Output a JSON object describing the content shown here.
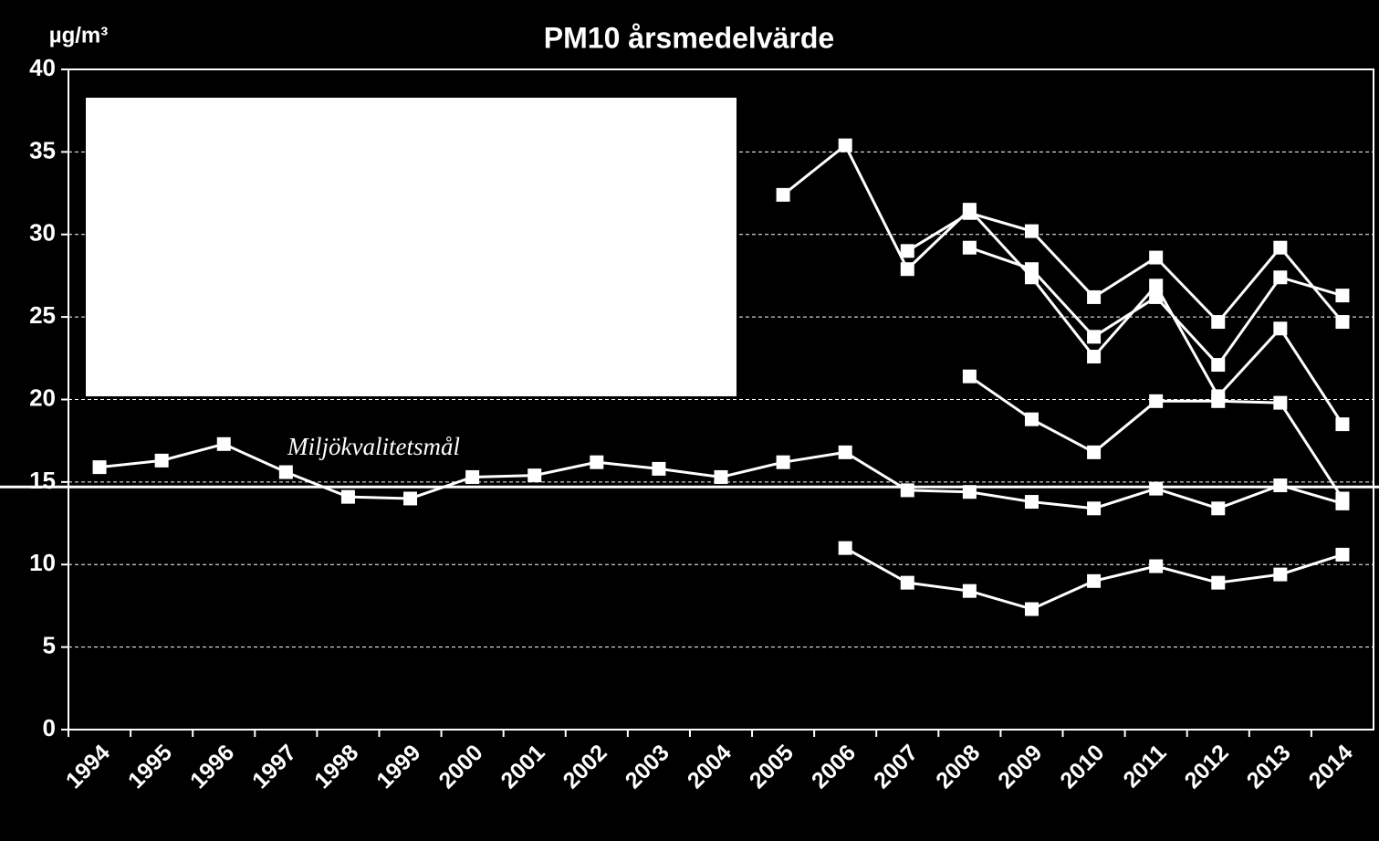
{
  "chart_data": {
    "type": "line",
    "title": "PM10 årsmedelvärde",
    "y_label": "µg/m³",
    "annotation": "Miljökvalitetsmål",
    "target": 14.7,
    "categories": [
      "1994",
      "1995",
      "1996",
      "1997",
      "1998",
      "1999",
      "2000",
      "2001",
      "2002",
      "2003",
      "2004",
      "2005",
      "2006",
      "2007",
      "2008",
      "2009",
      "2010",
      "2011",
      "2012",
      "2013",
      "2014"
    ],
    "series": [
      {
        "color": "#ffffff",
        "values": [
          15.9,
          16.3,
          17.3,
          15.6,
          14.1,
          14.0,
          15.3,
          15.4,
          16.2,
          15.8,
          15.3,
          16.2,
          16.8,
          14.5,
          14.4,
          13.8,
          13.4,
          14.6,
          13.4,
          14.8,
          13.7
        ]
      },
      {
        "color": "#ffffff",
        "values": [
          null,
          null,
          null,
          null,
          null,
          null,
          null,
          null,
          null,
          null,
          null,
          32.4,
          35.4,
          27.9,
          31.5,
          27.4,
          22.6,
          26.9,
          20.2,
          24.3,
          18.5
        ]
      },
      {
        "color": "#ffffff",
        "values": [
          null,
          null,
          null,
          null,
          null,
          null,
          null,
          null,
          null,
          null,
          null,
          null,
          null,
          29.0,
          31.3,
          30.2,
          26.2,
          28.6,
          24.7,
          29.2,
          24.7
        ]
      },
      {
        "color": "#ffffff",
        "values": [
          null,
          null,
          null,
          null,
          null,
          null,
          null,
          null,
          null,
          null,
          null,
          null,
          null,
          null,
          29.2,
          27.9,
          23.8,
          26.2,
          22.1,
          27.4,
          26.3
        ]
      },
      {
        "color": "#ffffff",
        "values": [
          null,
          null,
          null,
          null,
          null,
          null,
          null,
          null,
          null,
          null,
          null,
          null,
          null,
          null,
          21.4,
          18.8,
          16.8,
          19.9,
          19.9,
          19.8,
          14.0
        ]
      },
      {
        "color": "#ffffff",
        "values": [
          null,
          null,
          null,
          null,
          null,
          null,
          null,
          null,
          null,
          null,
          null,
          null,
          11.0,
          8.9,
          8.4,
          7.3,
          9.0,
          9.9,
          8.9,
          9.4,
          10.6
        ]
      }
    ],
    "ylim": [
      0,
      40
    ],
    "yticks": [
      0,
      5,
      10,
      15,
      20,
      25,
      30,
      35,
      40
    ],
    "grid": true
  }
}
